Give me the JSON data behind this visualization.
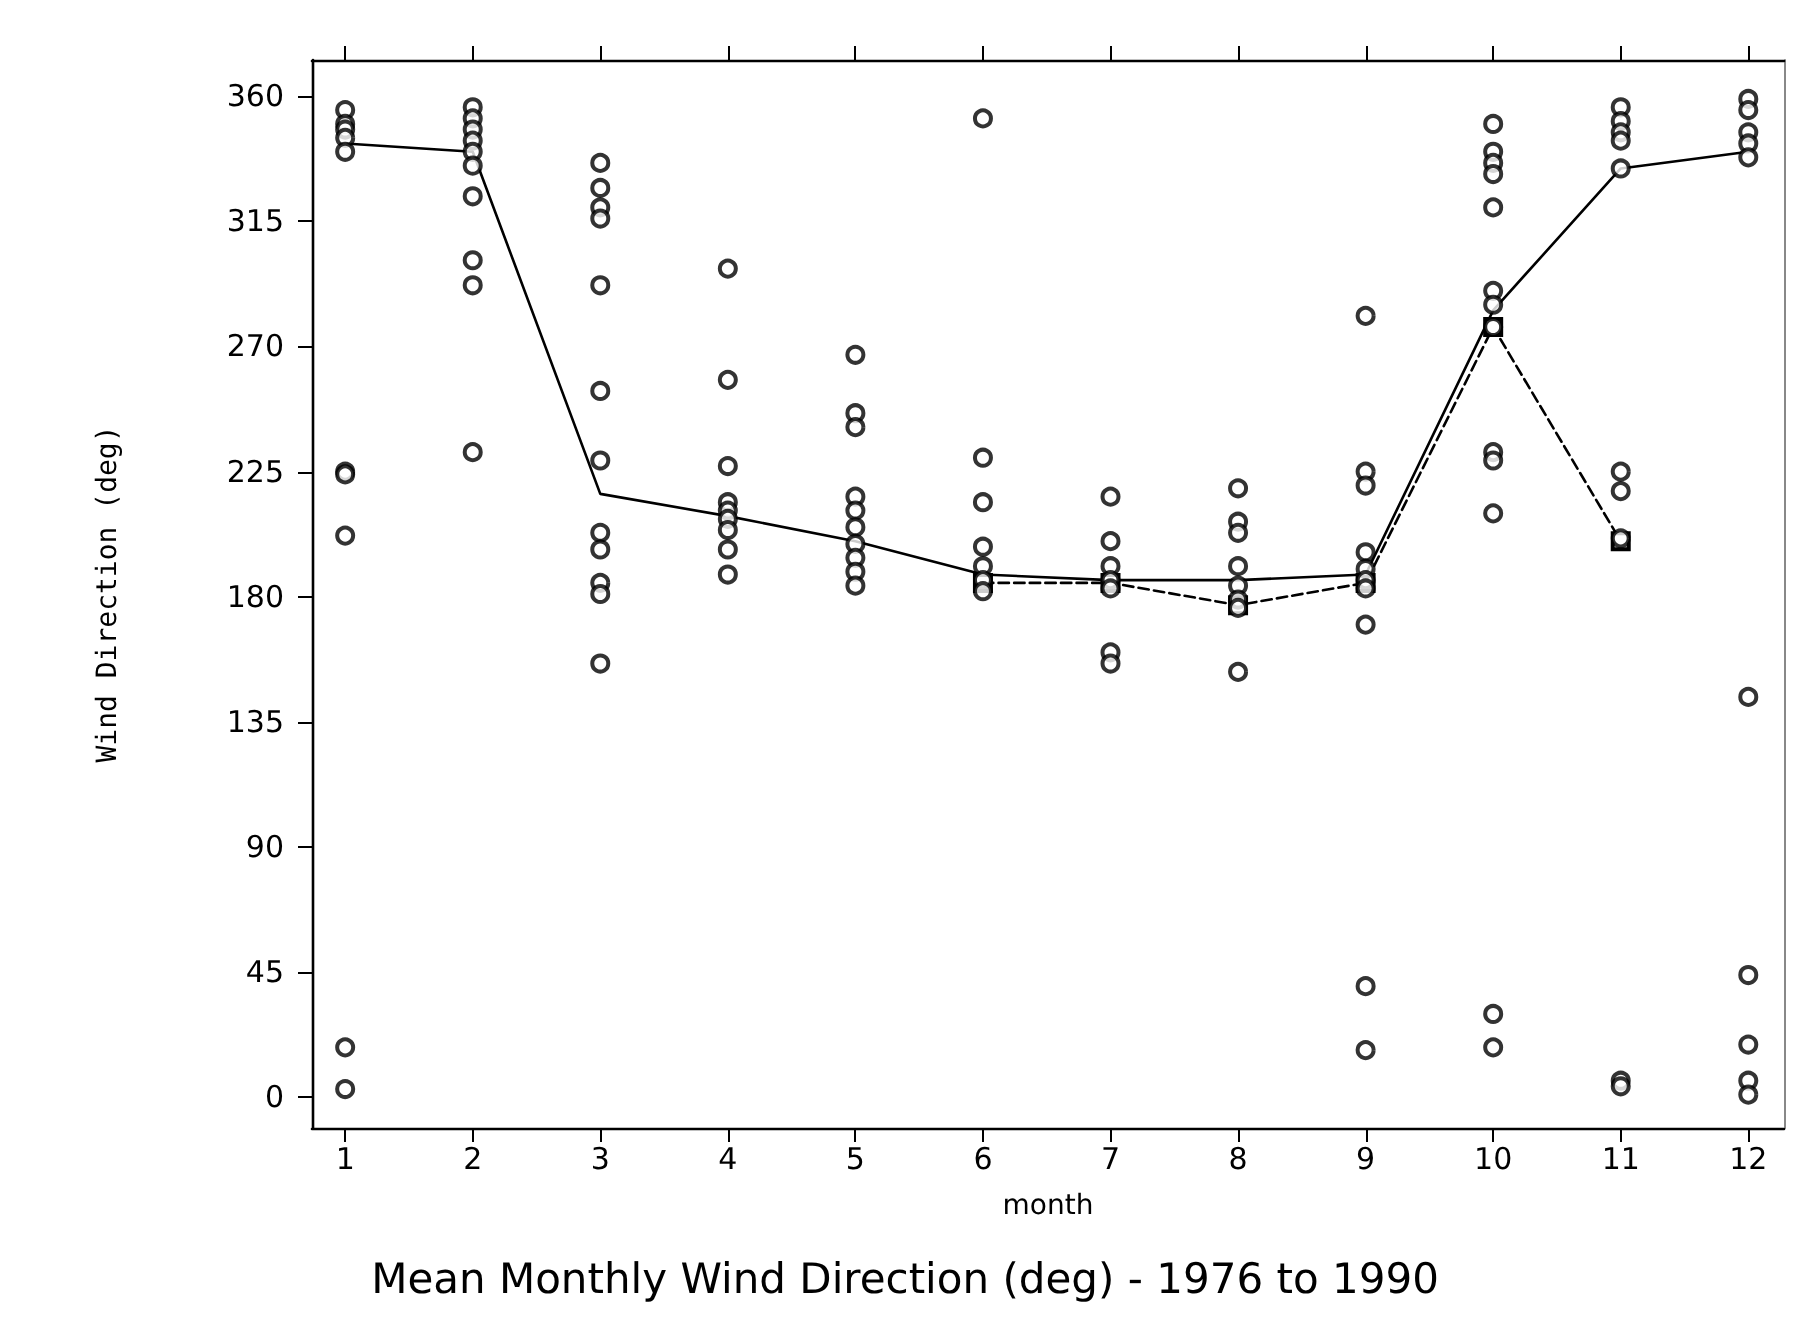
{
  "chart_data": {
    "type": "scatter",
    "title": "Mean Monthly Wind Direction (deg) - 1976 to 1990",
    "xlabel": "month",
    "ylabel": "Wind Direction (deg)",
    "xlim": [
      0.74,
      12.28
    ],
    "xticks": [
      1,
      2,
      3,
      4,
      5,
      6,
      7,
      8,
      9,
      10,
      11,
      12
    ],
    "ylim": [
      -11,
      373
    ],
    "yticks": [
      0,
      45,
      90,
      135,
      180,
      225,
      270,
      315,
      360
    ],
    "grid": false,
    "legend": false,
    "series": [
      {
        "color": "#000000",
        "marker": "circle",
        "x": [
          1,
          1,
          1,
          1,
          1,
          1,
          1,
          1,
          1,
          1,
          2,
          2,
          2,
          2,
          2,
          2,
          2,
          2,
          2,
          2,
          3,
          3,
          3,
          3,
          3,
          3,
          3,
          3,
          3,
          3,
          3,
          3,
          4,
          4,
          4,
          4,
          4,
          4,
          4,
          4,
          4,
          5,
          5,
          5,
          5,
          5,
          5,
          5,
          5,
          5,
          5,
          6,
          6,
          6,
          6,
          6,
          6,
          6,
          7,
          7,
          7,
          7,
          7,
          7,
          7,
          8,
          8,
          8,
          8,
          8,
          8,
          8,
          8,
          9,
          9,
          9,
          9,
          9,
          9,
          9,
          9,
          9,
          9,
          10,
          10,
          10,
          10,
          10,
          10,
          10,
          10,
          10,
          10,
          10,
          10,
          10,
          11,
          11,
          11,
          11,
          11,
          11,
          11,
          11,
          11,
          11,
          12,
          12,
          12,
          12,
          12,
          12,
          12,
          12,
          12,
          12
        ],
        "values": [
          355,
          350,
          348,
          345,
          340,
          225,
          224,
          202,
          18,
          3,
          356,
          352,
          348,
          344,
          340,
          335,
          324,
          301,
          292,
          232,
          336,
          327,
          320,
          316,
          292,
          254,
          229,
          203,
          197,
          185,
          181,
          156,
          298,
          258,
          227,
          214,
          211,
          208,
          204,
          197,
          188,
          267,
          246,
          241,
          216,
          211,
          205,
          199,
          194,
          189,
          184,
          352,
          230,
          214,
          198,
          191,
          186,
          182,
          216,
          200,
          191,
          186,
          183,
          160,
          156,
          219,
          207,
          203,
          191,
          184,
          179,
          176,
          153,
          281,
          225,
          220,
          196,
          190,
          186,
          183,
          170,
          40,
          17,
          350,
          340,
          336,
          332,
          320,
          290,
          285,
          277,
          232,
          229,
          210,
          30,
          18,
          356,
          351,
          347,
          344,
          334,
          225,
          218,
          201,
          6,
          4,
          359,
          355,
          347,
          343,
          338,
          144,
          44,
          19,
          6,
          1
        ]
      },
      {
        "type": "line",
        "color": "#000000",
        "marker": "none",
        "line_style": "solid",
        "x": [
          1,
          2,
          3,
          4,
          5,
          6,
          7,
          8,
          9,
          10,
          11,
          12
        ],
        "values": [
          343,
          340,
          217,
          209,
          200,
          188,
          186,
          186,
          188,
          283,
          334,
          340
        ]
      },
      {
        "type": "line",
        "color": "#000000",
        "marker": "square",
        "line_style": "dashed",
        "x": [
          6,
          7,
          8,
          9,
          10,
          11
        ],
        "values": [
          185,
          185,
          177,
          185,
          277,
          200
        ]
      }
    ]
  }
}
